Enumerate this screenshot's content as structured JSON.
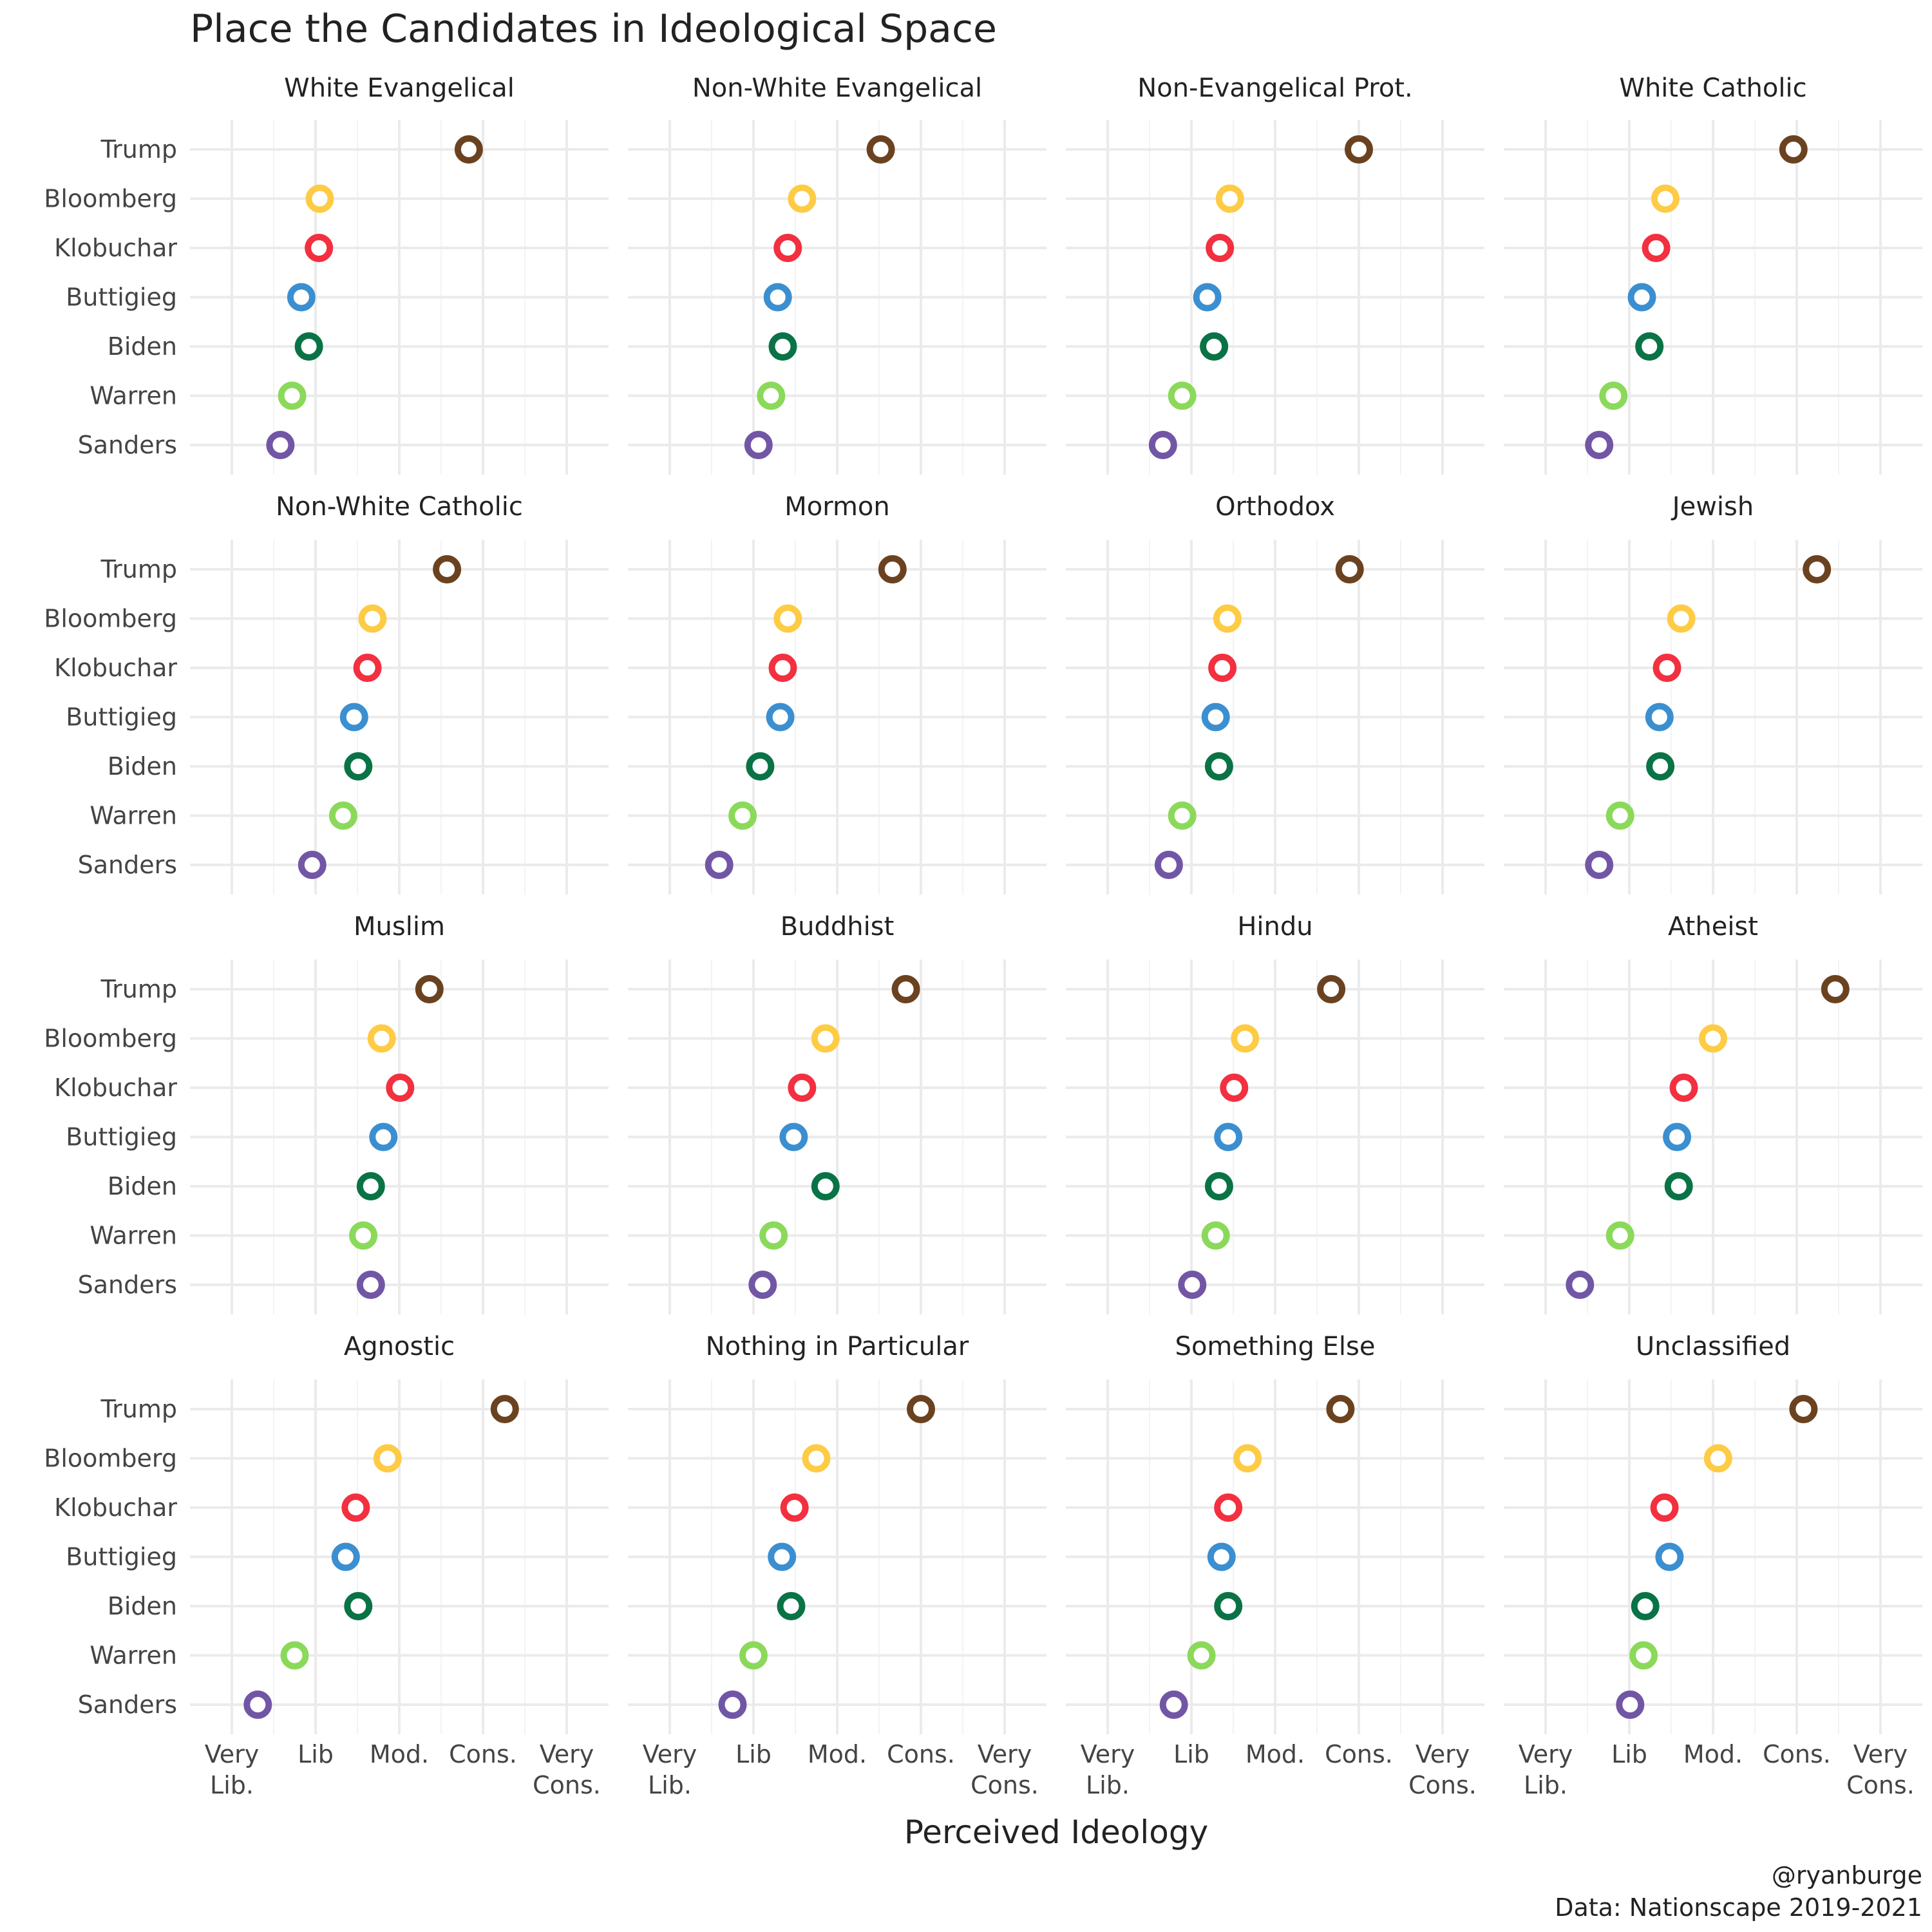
{
  "chart_data": {
    "type": "scatter",
    "title": "Place the Candidates in Ideological Space",
    "xlabel": "Perceived Ideology",
    "xlim": [
      0.5,
      5.5
    ],
    "x_ticks": [
      {
        "value": 1,
        "label": "Very\nLib."
      },
      {
        "value": 2,
        "label": "Lib"
      },
      {
        "value": 3,
        "label": "Mod."
      },
      {
        "value": 4,
        "label": "Cons."
      },
      {
        "value": 5,
        "label": "Very\nCons."
      }
    ],
    "candidates": [
      "Trump",
      "Bloomberg",
      "Klobuchar",
      "Buttigieg",
      "Biden",
      "Warren",
      "Sanders"
    ],
    "colors": {
      "Trump": "#6b4220",
      "Bloomberg": "#fecb45",
      "Klobuchar": "#f2303f",
      "Buttigieg": "#3b8fd0",
      "Biden": "#0a7346",
      "Warren": "#8bd95a",
      "Sanders": "#7256a6"
    },
    "panels": [
      {
        "name": "White Evangelical",
        "values": {
          "Trump": 3.83,
          "Bloomberg": 2.05,
          "Klobuchar": 2.04,
          "Buttigieg": 1.83,
          "Biden": 1.92,
          "Warren": 1.72,
          "Sanders": 1.58
        }
      },
      {
        "name": "Non-White Evangelical",
        "values": {
          "Trump": 3.52,
          "Bloomberg": 2.58,
          "Klobuchar": 2.41,
          "Buttigieg": 2.29,
          "Biden": 2.35,
          "Warren": 2.21,
          "Sanders": 2.06
        }
      },
      {
        "name": "Non-Evangelical Prot.",
        "values": {
          "Trump": 4.0,
          "Bloomberg": 2.46,
          "Klobuchar": 2.34,
          "Buttigieg": 2.19,
          "Biden": 2.27,
          "Warren": 1.89,
          "Sanders": 1.66
        }
      },
      {
        "name": "White Catholic",
        "values": {
          "Trump": 3.96,
          "Bloomberg": 2.43,
          "Klobuchar": 2.32,
          "Buttigieg": 2.15,
          "Biden": 2.24,
          "Warren": 1.81,
          "Sanders": 1.64
        }
      },
      {
        "name": "Non-White Catholic",
        "values": {
          "Trump": 3.57,
          "Bloomberg": 2.68,
          "Klobuchar": 2.62,
          "Buttigieg": 2.46,
          "Biden": 2.51,
          "Warren": 2.33,
          "Sanders": 1.96
        }
      },
      {
        "name": "Mormon",
        "values": {
          "Trump": 3.66,
          "Bloomberg": 2.41,
          "Klobuchar": 2.35,
          "Buttigieg": 2.32,
          "Biden": 2.08,
          "Warren": 1.87,
          "Sanders": 1.59
        }
      },
      {
        "name": "Orthodox",
        "values": {
          "Trump": 3.89,
          "Bloomberg": 2.43,
          "Klobuchar": 2.37,
          "Buttigieg": 2.29,
          "Biden": 2.33,
          "Warren": 1.89,
          "Sanders": 1.73
        }
      },
      {
        "name": "Jewish",
        "values": {
          "Trump": 4.24,
          "Bloomberg": 2.62,
          "Klobuchar": 2.45,
          "Buttigieg": 2.36,
          "Biden": 2.37,
          "Warren": 1.89,
          "Sanders": 1.64
        }
      },
      {
        "name": "Muslim",
        "values": {
          "Trump": 3.36,
          "Bloomberg": 2.79,
          "Klobuchar": 3.01,
          "Buttigieg": 2.81,
          "Biden": 2.66,
          "Warren": 2.57,
          "Sanders": 2.66
        }
      },
      {
        "name": "Buddhist",
        "values": {
          "Trump": 3.82,
          "Bloomberg": 2.86,
          "Klobuchar": 2.58,
          "Buttigieg": 2.48,
          "Biden": 2.86,
          "Warren": 2.24,
          "Sanders": 2.11
        }
      },
      {
        "name": "Hindu",
        "values": {
          "Trump": 3.67,
          "Bloomberg": 2.64,
          "Klobuchar": 2.51,
          "Buttigieg": 2.44,
          "Biden": 2.33,
          "Warren": 2.29,
          "Sanders": 2.01
        }
      },
      {
        "name": "Atheist",
        "values": {
          "Trump": 4.46,
          "Bloomberg": 3.0,
          "Klobuchar": 2.65,
          "Buttigieg": 2.57,
          "Biden": 2.59,
          "Warren": 1.89,
          "Sanders": 1.41
        }
      },
      {
        "name": "Agnostic",
        "values": {
          "Trump": 4.26,
          "Bloomberg": 2.86,
          "Klobuchar": 2.48,
          "Buttigieg": 2.36,
          "Biden": 2.51,
          "Warren": 1.75,
          "Sanders": 1.31
        }
      },
      {
        "name": "Nothing in Particular",
        "values": {
          "Trump": 4.0,
          "Bloomberg": 2.75,
          "Klobuchar": 2.49,
          "Buttigieg": 2.34,
          "Biden": 2.45,
          "Warren": 2.0,
          "Sanders": 1.75
        }
      },
      {
        "name": "Something Else",
        "values": {
          "Trump": 3.78,
          "Bloomberg": 2.67,
          "Klobuchar": 2.44,
          "Buttigieg": 2.36,
          "Biden": 2.44,
          "Warren": 2.12,
          "Sanders": 1.79
        }
      },
      {
        "name": "Unclassified",
        "values": {
          "Trump": 4.08,
          "Bloomberg": 3.06,
          "Klobuchar": 2.42,
          "Buttigieg": 2.48,
          "Biden": 2.19,
          "Warren": 2.17,
          "Sanders": 2.01
        }
      }
    ]
  },
  "caption": {
    "handle": "@ryanburge",
    "source": "Data: Nationscape 2019-2021"
  }
}
